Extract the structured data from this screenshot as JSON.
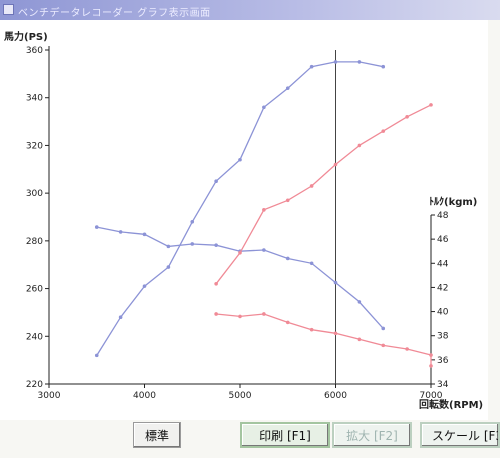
{
  "window": {
    "title": "ベンチデータレコーダー  グラフ表示画面"
  },
  "buttons": {
    "standard": "標準",
    "print": "印刷 [F1]",
    "zoom": "拡大 [F2]",
    "scale": "スケール [F3]"
  },
  "chart_data": {
    "type": "line",
    "xlabel": "回転数(RPM)",
    "ylabel_left": "馬力(PS)",
    "ylabel_right": "ﾄﾙｸ(kgm)",
    "xlim": [
      3000,
      7000
    ],
    "ylim_left": [
      220,
      360
    ],
    "ylim_right": [
      34,
      48
    ],
    "x_ticks": [
      3000,
      4000,
      5000,
      6000,
      7000
    ],
    "y_left_ticks": [
      220,
      240,
      260,
      280,
      300,
      320,
      340,
      360
    ],
    "y_right_ticks": [
      34,
      36,
      38,
      40,
      42,
      44,
      46,
      48
    ],
    "cursor_x": 6000,
    "grid": false,
    "colors": {
      "blue": "#8c93d6",
      "red": "#f08a96",
      "axis": "#222222"
    },
    "series": [
      {
        "axis": "left",
        "color": "#8c93d6",
        "points": [
          [
            3500,
            232
          ],
          [
            3750,
            248
          ],
          [
            4000,
            261
          ],
          [
            4250,
            269
          ],
          [
            4500,
            288
          ],
          [
            4750,
            305
          ],
          [
            5000,
            314
          ],
          [
            5250,
            336
          ],
          [
            5500,
            344
          ],
          [
            5750,
            353
          ],
          [
            6000,
            355
          ],
          [
            6250,
            355
          ],
          [
            6500,
            353
          ]
        ]
      },
      {
        "axis": "right",
        "color": "#8c93d6",
        "points": [
          [
            3500,
            47.0
          ],
          [
            3750,
            46.6
          ],
          [
            4000,
            46.4
          ],
          [
            4250,
            45.4
          ],
          [
            4500,
            45.6
          ],
          [
            4750,
            45.5
          ],
          [
            5000,
            45.0
          ],
          [
            5250,
            45.1
          ],
          [
            5500,
            44.4
          ],
          [
            5750,
            44.0
          ],
          [
            6000,
            42.4
          ],
          [
            6250,
            40.8
          ],
          [
            6500,
            38.6
          ]
        ]
      },
      {
        "axis": "left",
        "color": "#f08a96",
        "points": [
          [
            4750,
            262
          ],
          [
            5000,
            275
          ],
          [
            5250,
            293
          ],
          [
            5500,
            297
          ],
          [
            5750,
            303
          ],
          [
            6000,
            312
          ],
          [
            6250,
            320
          ],
          [
            6500,
            326
          ],
          [
            6750,
            332
          ],
          [
            7000,
            337
          ]
        ]
      },
      {
        "axis": "right",
        "color": "#f08a96",
        "points": [
          [
            4750,
            39.8
          ],
          [
            5000,
            39.6
          ],
          [
            5250,
            39.8
          ],
          [
            5500,
            39.1
          ],
          [
            5750,
            38.5
          ],
          [
            6000,
            38.2
          ],
          [
            6250,
            37.7
          ],
          [
            6500,
            37.2
          ],
          [
            6750,
            36.9
          ],
          [
            7000,
            36.4
          ],
          [
            7000,
            35.5
          ]
        ]
      }
    ]
  }
}
